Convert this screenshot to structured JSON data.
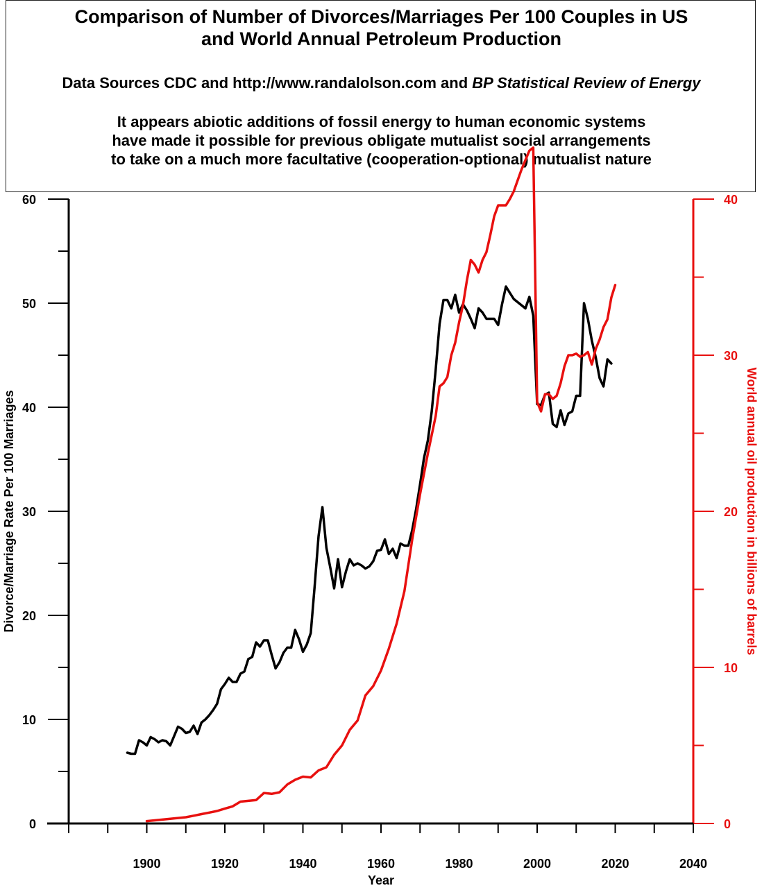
{
  "header": {
    "title_lines": [
      "Comparison of Number of Divorces/Marriages Per 100 Couples in US",
      "and World Annual Petroleum Production"
    ],
    "sources_prefix": "Data Sources CDC and http://www.randalolson.com and ",
    "sources_italic": "BP Statistical Review of Energy",
    "note_lines": [
      "It appears abiotic additions of fossil energy to human economic systems",
      "have made it possible for previous obligate mutualist social arrangements",
      "to take on a much more facultative (cooperation-optional) mutualist nature"
    ]
  },
  "colors": {
    "divorce_series": "#000000",
    "oil_series": "#e8100f",
    "axis": "#000000",
    "right_axis": "#e8100f"
  },
  "chart_data": {
    "type": "line",
    "xlabel": "Year",
    "ylabel": "Divorce/Marriage Rate Per 100 Marriages",
    "y2label": "World annual oil production in billions of barrels",
    "xlim": [
      1880,
      2040
    ],
    "ylim": [
      0,
      60
    ],
    "y2lim": [
      0,
      40
    ],
    "x_ticks": [
      1900,
      1920,
      1940,
      1960,
      1980,
      2000,
      2020,
      2040
    ],
    "y_ticks": [
      0,
      10,
      20,
      30,
      40,
      50,
      60
    ],
    "y2_ticks": [
      0,
      10,
      20,
      30,
      40
    ],
    "grid": false,
    "series": [
      {
        "axis": "left",
        "x": [
          1895,
          1896,
          1897,
          1898,
          1899,
          1900,
          1901,
          1902,
          1903,
          1904,
          1905,
          1906,
          1907,
          1908,
          1909,
          1910,
          1911,
          1912,
          1913,
          1914,
          1915,
          1916,
          1917,
          1918,
          1919,
          1920,
          1921,
          1922,
          1923,
          1924,
          1925,
          1926,
          1927,
          1928,
          1929,
          1930,
          1931,
          1932,
          1933,
          1934,
          1935,
          1936,
          1937,
          1938,
          1939,
          1940,
          1941,
          1942,
          1943,
          1944,
          1945,
          1946,
          1947,
          1948,
          1949,
          1950,
          1951,
          1952,
          1953,
          1954,
          1955,
          1956,
          1957,
          1958,
          1959,
          1960,
          1961,
          1962,
          1963,
          1964,
          1965,
          1966,
          1967,
          1968,
          1969,
          1970,
          1971,
          1972,
          1973,
          1974,
          1975,
          1976,
          1977,
          1978,
          1979,
          1980,
          1981,
          1982,
          1983,
          1984,
          1985,
          1986,
          1987,
          1988,
          1989,
          1990,
          1991,
          1992,
          1993,
          1994,
          1995,
          1996,
          1997,
          1998,
          1999,
          2000,
          2001,
          2002,
          2003,
          2004,
          2005,
          2006,
          2007,
          2008,
          2009,
          2010,
          2011,
          2012,
          2013,
          2014,
          2015,
          2016,
          2017,
          2018,
          2019
        ],
        "values": [
          6.8,
          6.7,
          6.7,
          8.0,
          7.8,
          7.5,
          8.3,
          8.1,
          7.8,
          8.0,
          7.9,
          7.5,
          8.4,
          9.3,
          9.1,
          8.7,
          8.8,
          9.4,
          8.6,
          9.7,
          10.0,
          10.4,
          10.9,
          11.5,
          12.9,
          13.4,
          14.0,
          13.6,
          13.6,
          14.4,
          14.6,
          15.8,
          16.0,
          17.4,
          17.0,
          17.6,
          17.6,
          16.2,
          14.9,
          15.5,
          16.4,
          16.9,
          16.9,
          18.6,
          17.7,
          16.5,
          17.2,
          18.3,
          22.8,
          27.6,
          30.4,
          26.5,
          24.6,
          22.6,
          25.4,
          22.7,
          24.2,
          25.4,
          24.8,
          25.0,
          24.8,
          24.5,
          24.7,
          25.2,
          26.2,
          26.3,
          27.3,
          25.9,
          26.4,
          25.5,
          26.9,
          26.7,
          26.7,
          28.2,
          30.2,
          32.6,
          35.1,
          36.8,
          39.6,
          43.6,
          48.0,
          50.3,
          50.3,
          49.5,
          50.8,
          49.1,
          49.9,
          49.3,
          48.5,
          47.6,
          49.5,
          49.1,
          48.5,
          48.5,
          48.5,
          47.9,
          49.9,
          51.6,
          51.0,
          50.4,
          50.1,
          49.8,
          49.5,
          50.6,
          48.8,
          40.3,
          40.2,
          41.2,
          41.4,
          38.4,
          38.1,
          39.7,
          38.3,
          39.4,
          39.6,
          41.1,
          41.1,
          50.0,
          48.5,
          46.4,
          44.8,
          42.8,
          42.0,
          44.6,
          44.2
        ]
      },
      {
        "axis": "right",
        "x": [
          1900,
          1902,
          1904,
          1906,
          1908,
          1910,
          1912,
          1914,
          1916,
          1918,
          1920,
          1922,
          1924,
          1926,
          1928,
          1930,
          1932,
          1934,
          1936,
          1938,
          1940,
          1942,
          1944,
          1946,
          1948,
          1950,
          1952,
          1954,
          1956,
          1958,
          1960,
          1962,
          1964,
          1966,
          1968,
          1970,
          1972,
          1974,
          1975,
          1976,
          1977,
          1978,
          1979,
          1980,
          1981,
          1982,
          1983,
          1984,
          1985,
          1986,
          1987,
          1988,
          1989,
          1990,
          1991,
          1992,
          1993,
          1994,
          1995,
          1996,
          1997,
          1998,
          1999,
          2000,
          2001,
          2002,
          2003,
          2004,
          2005,
          2006,
          2007,
          2008,
          2009,
          2010,
          2011,
          2012,
          2013,
          2014,
          2015,
          2016,
          2017,
          2018,
          2019,
          2020
        ],
        "values": [
          0.15,
          0.2,
          0.25,
          0.3,
          0.35,
          0.4,
          0.5,
          0.6,
          0.7,
          0.8,
          0.95,
          1.1,
          1.4,
          1.45,
          1.5,
          1.95,
          1.9,
          2.0,
          2.5,
          2.8,
          3.0,
          2.95,
          3.4,
          3.6,
          4.4,
          5.0,
          6.0,
          6.6,
          8.2,
          8.8,
          9.8,
          11.2,
          12.8,
          14.9,
          18.2,
          21.1,
          23.7,
          26.1,
          28.0,
          28.2,
          28.6,
          30.0,
          30.8,
          32.1,
          33.2,
          34.8,
          36.1,
          35.8,
          35.3,
          36.1,
          36.6,
          37.7,
          38.9,
          39.6,
          39.6,
          39.6,
          40.0,
          40.5,
          41.2,
          41.9,
          42.5,
          43.1,
          43.3,
          27.0,
          26.4,
          27.5,
          27.5,
          27.2,
          27.4,
          28.2,
          29.3,
          30.0,
          30.0,
          30.1,
          29.9,
          30.0,
          30.2,
          29.4,
          30.4,
          31.0,
          31.8,
          32.3,
          33.7,
          34.5
        ]
      }
    ]
  }
}
